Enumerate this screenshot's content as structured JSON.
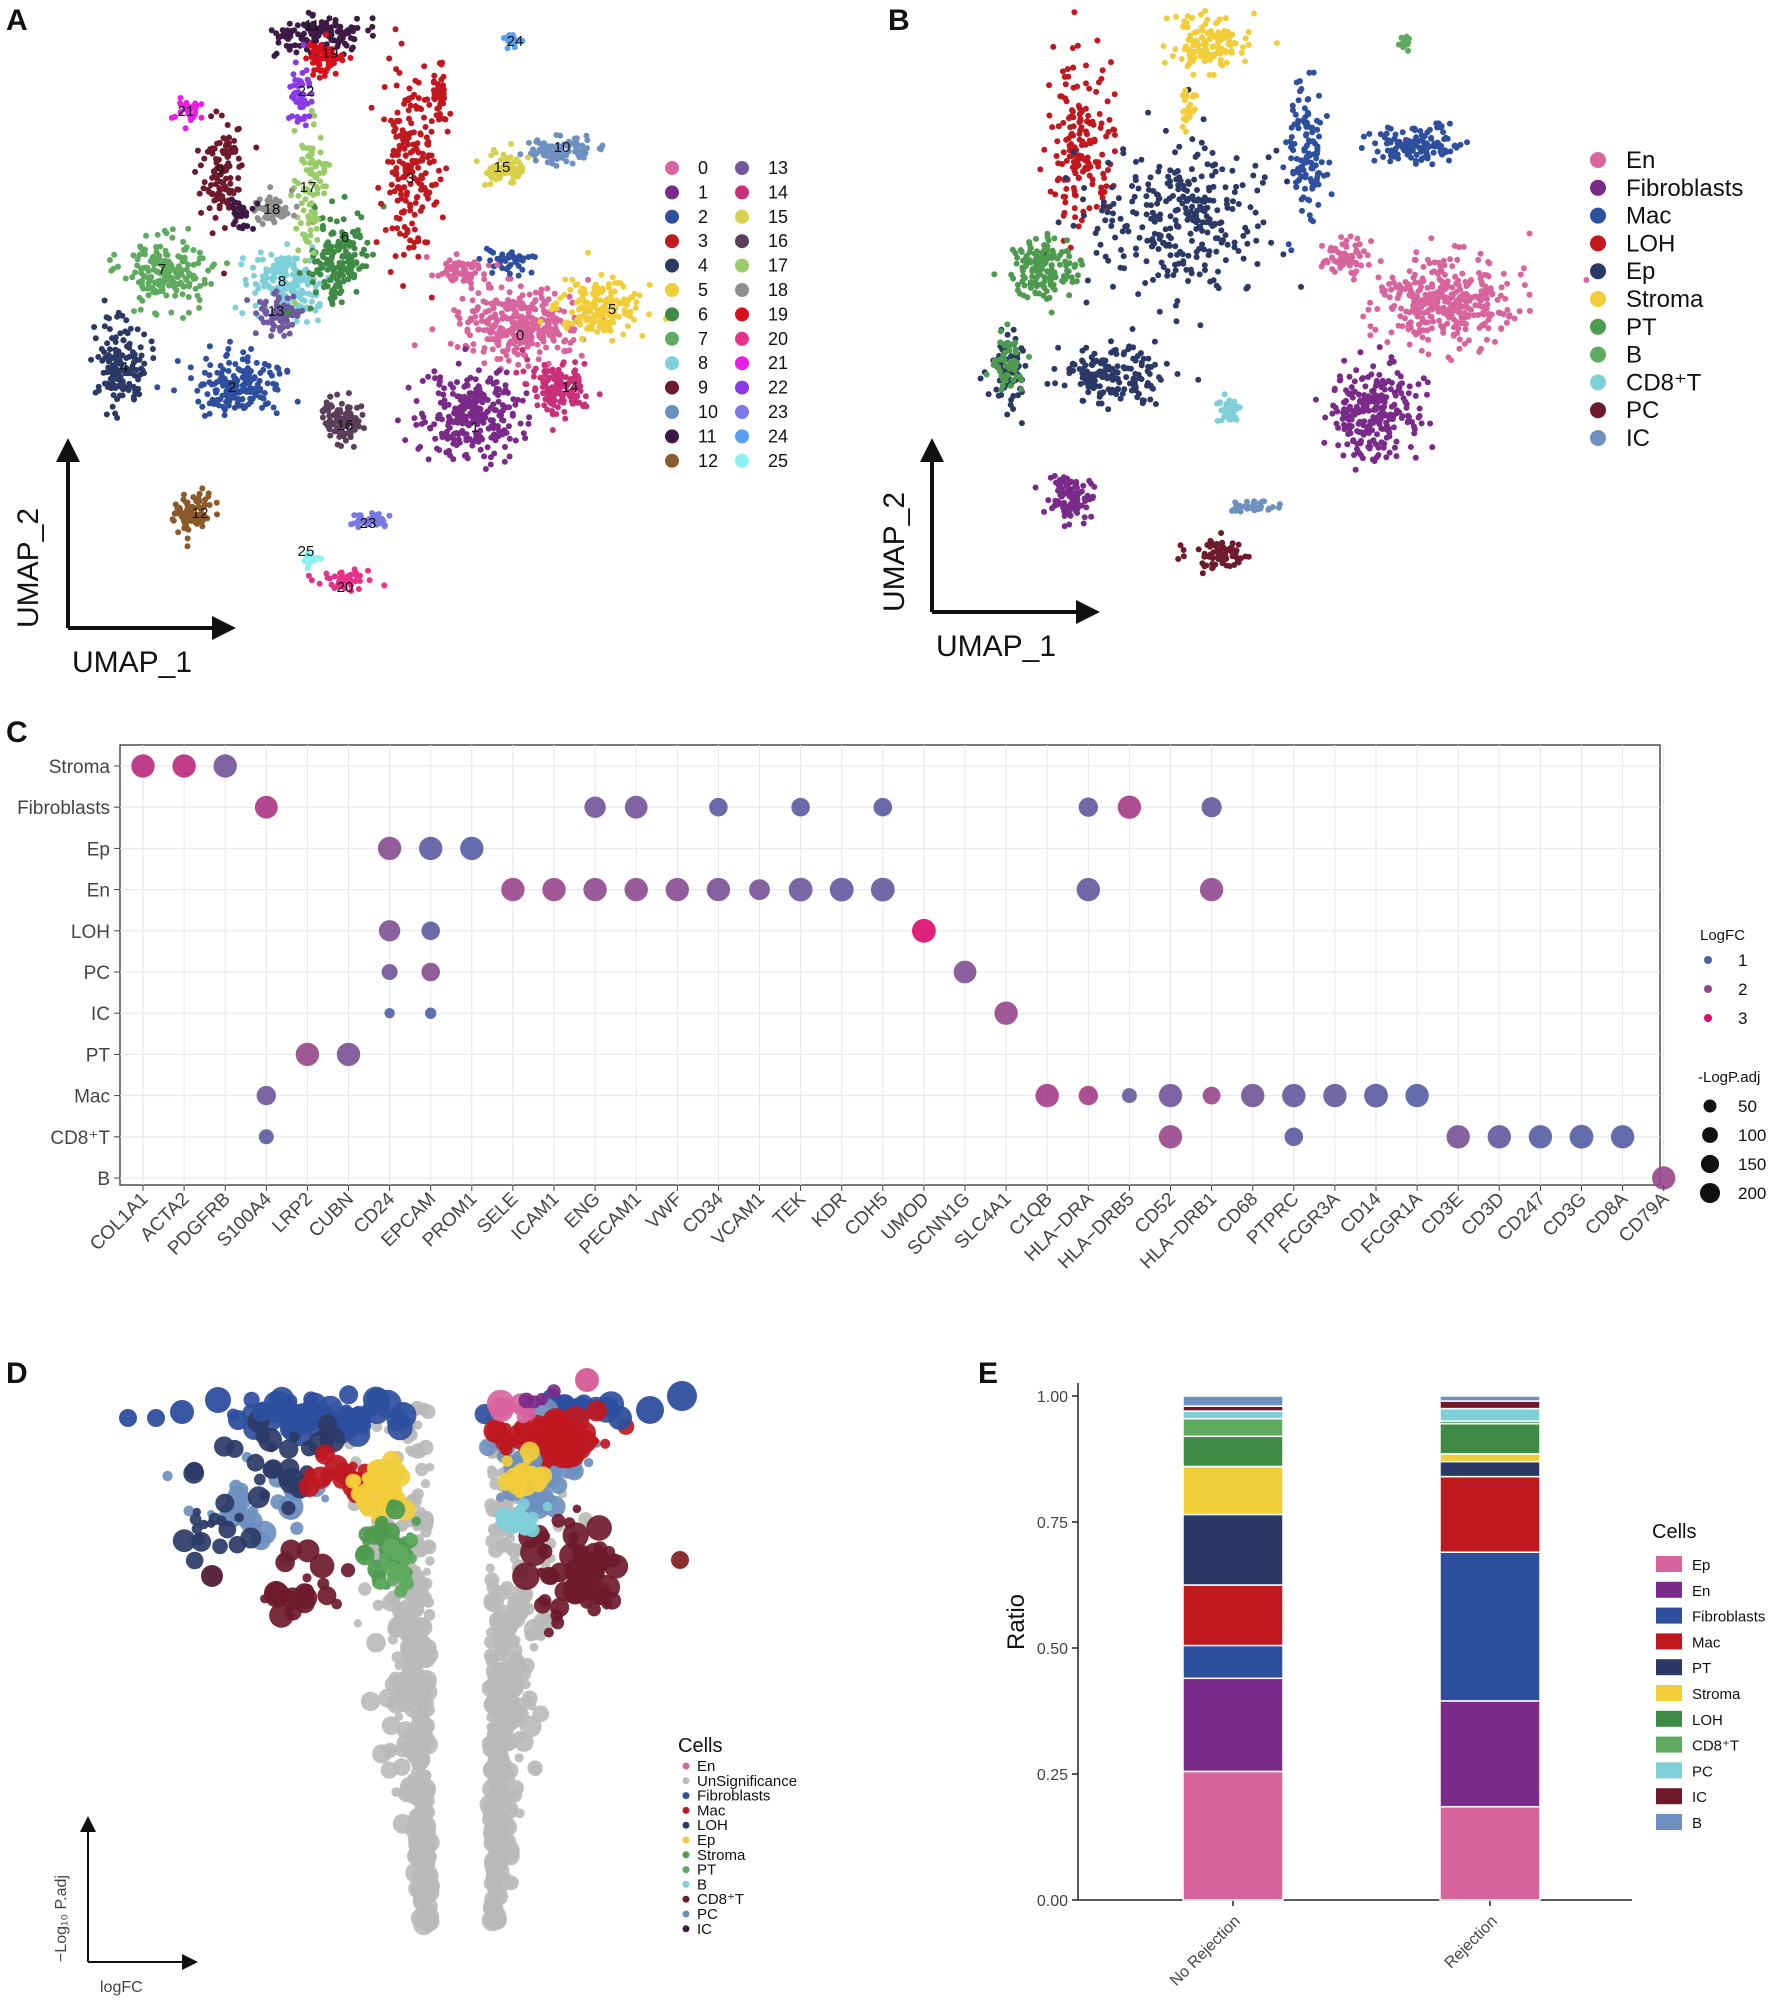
{
  "panels": {
    "a": {
      "letter": "A",
      "xlabel": "UMAP_1",
      "ylabel": "UMAP_2"
    },
    "b": {
      "letter": "B",
      "xlabel": "UMAP_1",
      "ylabel": "UMAP_2"
    },
    "c": {
      "letter": "C"
    },
    "d": {
      "letter": "D"
    },
    "e": {
      "letter": "E"
    }
  },
  "colors": {
    "En": "#d8649e",
    "Fibroblasts": "#7a2a88",
    "Mac": "#2e4f9e",
    "LOH": "#c0181f",
    "Ep": "#2b3966",
    "Stroma": "#f2cd3a",
    "PT": "#4e9b4f",
    "B": "#5eaa5e",
    "CD8T": "#7ecfd8",
    "PC": "#6e1a2c",
    "IC": "#6e90c0",
    "grey": "#b9b9b9"
  },
  "chart_data": [
    {
      "panel": "A",
      "type": "scatter",
      "title": "",
      "xlabel": "UMAP_1",
      "ylabel": "UMAP_2",
      "legend": [
        {
          "label": "0",
          "color": "#d8649e"
        },
        {
          "label": "1",
          "color": "#7a2a88"
        },
        {
          "label": "2",
          "color": "#2e4f9e"
        },
        {
          "label": "3",
          "color": "#c0181f"
        },
        {
          "label": "4",
          "color": "#2b3966"
        },
        {
          "label": "5",
          "color": "#f2cd3a"
        },
        {
          "label": "6",
          "color": "#3f8a45"
        },
        {
          "label": "7",
          "color": "#5eaa5e"
        },
        {
          "label": "8",
          "color": "#7ecfd8"
        },
        {
          "label": "9",
          "color": "#6e1a2c"
        },
        {
          "label": "10",
          "color": "#6e90c0"
        },
        {
          "label": "11",
          "color": "#3d1a45"
        },
        {
          "label": "12",
          "color": "#8b5a2b"
        },
        {
          "label": "13",
          "color": "#6f5a9e"
        },
        {
          "label": "14",
          "color": "#c9307a"
        },
        {
          "label": "15",
          "color": "#d8d04a"
        },
        {
          "label": "16",
          "color": "#5a3e5a"
        },
        {
          "label": "17",
          "color": "#9acb6a"
        },
        {
          "label": "18",
          "color": "#8f8f8f"
        },
        {
          "label": "19",
          "color": "#d8101a"
        },
        {
          "label": "20",
          "color": "#e6338a"
        },
        {
          "label": "21",
          "color": "#e61ee6"
        },
        {
          "label": "22",
          "color": "#8a3ae6"
        },
        {
          "label": "23",
          "color": "#7a7ae6"
        },
        {
          "label": "24",
          "color": "#5a9ef0"
        },
        {
          "label": "25",
          "color": "#8ef0f0"
        }
      ]
    },
    {
      "panel": "B",
      "type": "scatter",
      "title": "",
      "xlabel": "UMAP_1",
      "ylabel": "UMAP_2",
      "legend": [
        {
          "label": "En",
          "color": "#d8649e"
        },
        {
          "label": "Fibroblasts",
          "color": "#7a2a88"
        },
        {
          "label": "Mac",
          "color": "#2e4f9e"
        },
        {
          "label": "LOH",
          "color": "#c0181f"
        },
        {
          "label": "Ep",
          "color": "#2b3966"
        },
        {
          "label": "Stroma",
          "color": "#f2cd3a"
        },
        {
          "label": "PT",
          "color": "#4e9b4f"
        },
        {
          "label": "B",
          "color": "#5eaa5e"
        },
        {
          "label": "CD8⁺T",
          "color": "#7ecfd8"
        },
        {
          "label": "PC",
          "color": "#6e1a2c"
        },
        {
          "label": "IC",
          "color": "#6e90c0"
        }
      ]
    },
    {
      "panel": "C",
      "type": "scatter",
      "title": "",
      "xlabel": "",
      "ylabel": "",
      "genes": [
        "COL1A1",
        "ACTA2",
        "PDGFRB",
        "S100A4",
        "LRP2",
        "CUBN",
        "CD24",
        "EPCAM",
        "PROM1",
        "SELE",
        "ICAM1",
        "ENG",
        "PECAM1",
        "VWF",
        "CD34",
        "VCAM1",
        "TEK",
        "KDR",
        "CDH5",
        "UMOD",
        "SCNN1G",
        "SLC4A1",
        "C1QB",
        "HLA−DRA",
        "HLA−DRB5",
        "CD52",
        "HLA−DRB1",
        "CD68",
        "PTPRC",
        "FCGR3A",
        "CD14",
        "FCGR1A",
        "CD3E",
        "CD3D",
        "CD247",
        "CD3G",
        "CD8A",
        "CD79A"
      ],
      "cell_types": [
        "Stroma",
        "Fibroblasts",
        "Ep",
        "En",
        "LOH",
        "PC",
        "IC",
        "PT",
        "Mac",
        "CD8⁺T",
        "B"
      ],
      "points": [
        {
          "y": "Stroma",
          "x": "COL1A1",
          "logfc": 2.5,
          "nlogp": 150
        },
        {
          "y": "Stroma",
          "x": "ACTA2",
          "logfc": 2.5,
          "nlogp": 150
        },
        {
          "y": "Stroma",
          "x": "PDGFRB",
          "logfc": 1.5,
          "nlogp": 150
        },
        {
          "y": "Fibroblasts",
          "x": "S100A4",
          "logfc": 2.3,
          "nlogp": 140
        },
        {
          "y": "Fibroblasts",
          "x": "ENG",
          "logfc": 1.5,
          "nlogp": 120
        },
        {
          "y": "Fibroblasts",
          "x": "PECAM1",
          "logfc": 1.5,
          "nlogp": 140
        },
        {
          "y": "Fibroblasts",
          "x": "CD34",
          "logfc": 1.2,
          "nlogp": 80
        },
        {
          "y": "Fibroblasts",
          "x": "TEK",
          "logfc": 1.2,
          "nlogp": 80
        },
        {
          "y": "Fibroblasts",
          "x": "CDH5",
          "logfc": 1.2,
          "nlogp": 80
        },
        {
          "y": "Fibroblasts",
          "x": "HLA−DRA",
          "logfc": 1.3,
          "nlogp": 90
        },
        {
          "y": "Fibroblasts",
          "x": "HLA−DRB5",
          "logfc": 2.2,
          "nlogp": 150
        },
        {
          "y": "Fibroblasts",
          "x": "HLA−DRB1",
          "logfc": 1.3,
          "nlogp": 100
        },
        {
          "y": "Ep",
          "x": "CD24",
          "logfc": 1.8,
          "nlogp": 150
        },
        {
          "y": "Ep",
          "x": "EPCAM",
          "logfc": 1.2,
          "nlogp": 150
        },
        {
          "y": "Ep",
          "x": "PROM1",
          "logfc": 1.1,
          "nlogp": 150
        },
        {
          "y": "En",
          "x": "SELE",
          "logfc": 2.0,
          "nlogp": 150
        },
        {
          "y": "En",
          "x": "ICAM1",
          "logfc": 2.0,
          "nlogp": 150
        },
        {
          "y": "En",
          "x": "ENG",
          "logfc": 1.9,
          "nlogp": 150
        },
        {
          "y": "En",
          "x": "PECAM1",
          "logfc": 1.9,
          "nlogp": 150
        },
        {
          "y": "En",
          "x": "VWF",
          "logfc": 1.8,
          "nlogp": 150
        },
        {
          "y": "En",
          "x": "CD34",
          "logfc": 1.6,
          "nlogp": 150
        },
        {
          "y": "En",
          "x": "VCAM1",
          "logfc": 1.6,
          "nlogp": 110
        },
        {
          "y": "En",
          "x": "TEK",
          "logfc": 1.4,
          "nlogp": 160
        },
        {
          "y": "En",
          "x": "KDR",
          "logfc": 1.3,
          "nlogp": 160
        },
        {
          "y": "En",
          "x": "CDH5",
          "logfc": 1.3,
          "nlogp": 160
        },
        {
          "y": "En",
          "x": "HLA−DRA",
          "logfc": 1.3,
          "nlogp": 150
        },
        {
          "y": "En",
          "x": "HLA−DRB1",
          "logfc": 1.9,
          "nlogp": 150
        },
        {
          "y": "LOH",
          "x": "CD24",
          "logfc": 1.7,
          "nlogp": 120
        },
        {
          "y": "LOH",
          "x": "EPCAM",
          "logfc": 1.2,
          "nlogp": 80
        },
        {
          "y": "LOH",
          "x": "UMOD",
          "logfc": 3.0,
          "nlogp": 160
        },
        {
          "y": "PC",
          "x": "CD24",
          "logfc": 1.5,
          "nlogp": 50
        },
        {
          "y": "PC",
          "x": "EPCAM",
          "logfc": 1.8,
          "nlogp": 80
        },
        {
          "y": "PC",
          "x": "SCNN1G",
          "logfc": 1.7,
          "nlogp": 140
        },
        {
          "y": "IC",
          "x": "CD24",
          "logfc": 1.0,
          "nlogp": 10
        },
        {
          "y": "IC",
          "x": "EPCAM",
          "logfc": 1.0,
          "nlogp": 15
        },
        {
          "y": "IC",
          "x": "SLC4A1",
          "logfc": 2.0,
          "nlogp": 150
        },
        {
          "y": "PT",
          "x": "LRP2",
          "logfc": 2.0,
          "nlogp": 150
        },
        {
          "y": "PT",
          "x": "CUBN",
          "logfc": 1.6,
          "nlogp": 150
        },
        {
          "y": "Mac",
          "x": "S100A4",
          "logfc": 1.5,
          "nlogp": 90
        },
        {
          "y": "Mac",
          "x": "C1QB",
          "logfc": 2.2,
          "nlogp": 150
        },
        {
          "y": "Mac",
          "x": "HLA−DRA",
          "logfc": 2.2,
          "nlogp": 90
        },
        {
          "y": "Mac",
          "x": "HLA−DRB5",
          "logfc": 1.3,
          "nlogp": 40
        },
        {
          "y": "Mac",
          "x": "CD52",
          "logfc": 1.5,
          "nlogp": 150
        },
        {
          "y": "Mac",
          "x": "HLA−DRB1",
          "logfc": 2.0,
          "nlogp": 70
        },
        {
          "y": "Mac",
          "x": "CD68",
          "logfc": 1.5,
          "nlogp": 150
        },
        {
          "y": "Mac",
          "x": "PTPRC",
          "logfc": 1.3,
          "nlogp": 150
        },
        {
          "y": "Mac",
          "x": "FCGR3A",
          "logfc": 1.3,
          "nlogp": 150
        },
        {
          "y": "Mac",
          "x": "CD14",
          "logfc": 1.2,
          "nlogp": 160
        },
        {
          "y": "Mac",
          "x": "FCGR1A",
          "logfc": 1.1,
          "nlogp": 150
        },
        {
          "y": "CD8⁺T",
          "x": "S100A4",
          "logfc": 1.2,
          "nlogp": 40
        },
        {
          "y": "CD8⁺T",
          "x": "CD52",
          "logfc": 2.0,
          "nlogp": 150
        },
        {
          "y": "CD8⁺T",
          "x": "PTPRC",
          "logfc": 1.2,
          "nlogp": 80
        },
        {
          "y": "CD8⁺T",
          "x": "CD3E",
          "logfc": 1.6,
          "nlogp": 150
        },
        {
          "y": "CD8⁺T",
          "x": "CD3D",
          "logfc": 1.3,
          "nlogp": 150
        },
        {
          "y": "CD8⁺T",
          "x": "CD247",
          "logfc": 1.1,
          "nlogp": 150
        },
        {
          "y": "CD8⁺T",
          "x": "CD3G",
          "logfc": 1.1,
          "nlogp": 160
        },
        {
          "y": "CD8⁺T",
          "x": "CD8A",
          "logfc": 1.1,
          "nlogp": 150
        },
        {
          "y": "B",
          "x": "CD79A",
          "logfc": 2.0,
          "nlogp": 150
        }
      ],
      "legend_logfc": {
        "title": "LogFC",
        "values": [
          "1",
          "2",
          "3"
        ]
      },
      "legend_size": {
        "title": "-LogP.adj",
        "values": [
          "50",
          "100",
          "150",
          "200"
        ]
      }
    },
    {
      "panel": "D",
      "type": "scatter",
      "title": "",
      "xlabel": "logFC",
      "ylabel": "−Log₁₀ P.adj",
      "legend_title": "Cells",
      "legend": [
        "En",
        "UnSignificance",
        "Fibroblasts",
        "Mac",
        "LOH",
        "Ep",
        "Stroma",
        "PT",
        "B",
        "CD8⁺T",
        "PC",
        "IC"
      ]
    },
    {
      "panel": "E",
      "type": "bar",
      "title": "",
      "xlabel": "",
      "ylabel": "Ratio",
      "ylim": [
        0,
        1.0
      ],
      "yticks": [
        "0.00",
        "0.25",
        "0.50",
        "0.75",
        "1.00"
      ],
      "categories": [
        "No Rejection",
        "Rejection"
      ],
      "stack_order_bottom_to_top": [
        "Ep",
        "En",
        "Fibroblasts",
        "Mac",
        "PT",
        "Stroma",
        "LOH",
        "CD8⁺T",
        "PC",
        "IC",
        "B"
      ],
      "series": [
        {
          "name": "Ep",
          "values": [
            0.255,
            0.185
          ]
        },
        {
          "name": "En",
          "values": [
            0.185,
            0.21
          ]
        },
        {
          "name": "Fibroblasts",
          "values": [
            0.065,
            0.295
          ]
        },
        {
          "name": "Mac",
          "values": [
            0.12,
            0.15
          ]
        },
        {
          "name": "PT",
          "values": [
            0.14,
            0.03
          ]
        },
        {
          "name": "Stroma",
          "values": [
            0.095,
            0.015
          ]
        },
        {
          "name": "LOH",
          "values": [
            0.06,
            0.06
          ]
        },
        {
          "name": "CD8⁺T",
          "values": [
            0.035,
            0.005
          ]
        },
        {
          "name": "PC",
          "values": [
            0.015,
            0.025
          ]
        },
        {
          "name": "IC",
          "values": [
            0.01,
            0.015
          ]
        },
        {
          "name": "B",
          "values": [
            0.02,
            0.01
          ]
        }
      ],
      "legend_title": "Cells",
      "legend": [
        "Ep",
        "En",
        "Fibroblasts",
        "Mac",
        "PT",
        "Stroma",
        "LOH",
        "CD8⁺T",
        "PC",
        "IC",
        "B"
      ]
    }
  ]
}
